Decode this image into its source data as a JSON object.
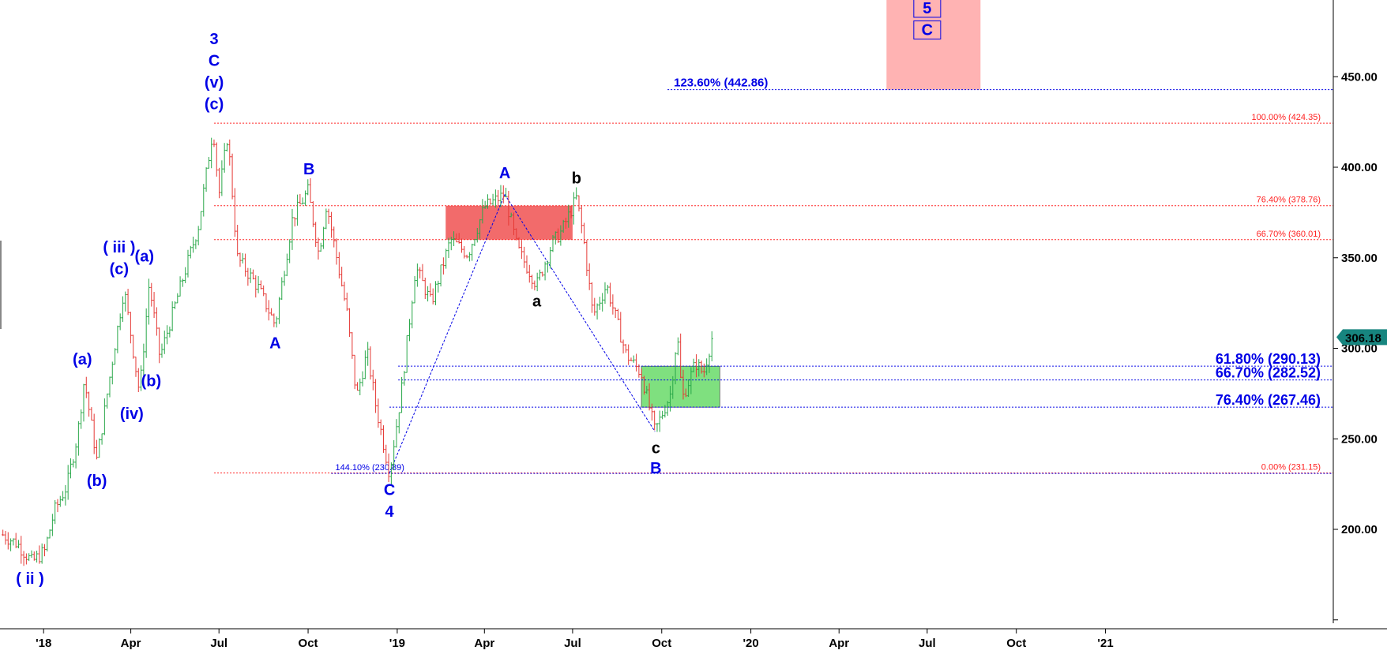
{
  "chart_data": {
    "type": "bar",
    "title": "",
    "xlabel": "",
    "ylabel": "",
    "ylim": [
      150,
      495
    ],
    "y_ticks": [
      "200.00",
      "250.00",
      "300.00",
      "350.00",
      "400.00",
      "450.00"
    ],
    "x_ticks": [
      "'18",
      "Apr",
      "Jul",
      "Oct",
      "'19",
      "Apr",
      "Jul",
      "Oct",
      "'20",
      "Apr",
      "Jul",
      "Oct",
      "'21"
    ],
    "grid": false,
    "last_price": {
      "label": "306.18",
      "value": 306.18
    },
    "price_path": [
      {
        "d": "2017-11-20",
        "v": 197
      },
      {
        "d": "2017-12-05",
        "v": 192
      },
      {
        "d": "2017-12-20",
        "v": 182
      },
      {
        "d": "2018-01-02",
        "v": 188
      },
      {
        "d": "2018-01-12",
        "v": 210
      },
      {
        "d": "2018-01-25",
        "v": 224
      },
      {
        "d": "2018-02-05",
        "v": 252
      },
      {
        "d": "2018-02-12",
        "v": 283
      },
      {
        "d": "2018-02-25",
        "v": 238
      },
      {
        "d": "2018-03-12",
        "v": 290
      },
      {
        "d": "2018-03-25",
        "v": 333
      },
      {
        "d": "2018-04-10",
        "v": 275
      },
      {
        "d": "2018-04-20",
        "v": 336
      },
      {
        "d": "2018-05-01",
        "v": 295
      },
      {
        "d": "2018-05-20",
        "v": 330
      },
      {
        "d": "2018-06-10",
        "v": 368
      },
      {
        "d": "2018-06-25",
        "v": 422
      },
      {
        "d": "2018-07-01",
        "v": 385
      },
      {
        "d": "2018-07-10",
        "v": 418
      },
      {
        "d": "2018-07-20",
        "v": 350
      },
      {
        "d": "2018-08-10",
        "v": 334
      },
      {
        "d": "2018-08-28",
        "v": 313
      },
      {
        "d": "2018-09-15",
        "v": 372
      },
      {
        "d": "2018-10-01",
        "v": 387
      },
      {
        "d": "2018-10-12",
        "v": 352
      },
      {
        "d": "2018-10-20",
        "v": 380
      },
      {
        "d": "2018-11-10",
        "v": 320
      },
      {
        "d": "2018-11-20",
        "v": 273
      },
      {
        "d": "2018-12-01",
        "v": 298
      },
      {
        "d": "2018-12-10",
        "v": 268
      },
      {
        "d": "2018-12-24",
        "v": 231
      },
      {
        "d": "2019-01-05",
        "v": 275
      },
      {
        "d": "2019-01-20",
        "v": 345
      },
      {
        "d": "2019-02-05",
        "v": 325
      },
      {
        "d": "2019-02-25",
        "v": 360
      },
      {
        "d": "2019-03-15",
        "v": 352
      },
      {
        "d": "2019-04-01",
        "v": 378
      },
      {
        "d": "2019-04-22",
        "v": 385
      },
      {
        "d": "2019-05-05",
        "v": 355
      },
      {
        "d": "2019-05-25",
        "v": 335
      },
      {
        "d": "2019-06-10",
        "v": 358
      },
      {
        "d": "2019-06-20",
        "v": 365
      },
      {
        "d": "2019-07-05",
        "v": 383
      },
      {
        "d": "2019-07-12",
        "v": 362
      },
      {
        "d": "2019-07-22",
        "v": 318
      },
      {
        "d": "2019-08-05",
        "v": 335
      },
      {
        "d": "2019-08-25",
        "v": 297
      },
      {
        "d": "2019-09-10",
        "v": 286
      },
      {
        "d": "2019-09-24",
        "v": 254
      },
      {
        "d": "2019-10-10",
        "v": 275
      },
      {
        "d": "2019-10-17",
        "v": 308
      },
      {
        "d": "2019-10-22",
        "v": 272
      },
      {
        "d": "2019-11-05",
        "v": 292
      },
      {
        "d": "2019-11-13",
        "v": 286
      },
      {
        "d": "2019-11-22",
        "v": 306
      }
    ],
    "fib_levels": [
      {
        "label": "100.00% (424.35)",
        "value": 424.35,
        "color": "#ff2222",
        "style": "small",
        "from": "2018-06-26"
      },
      {
        "label": "76.40% (378.76)",
        "value": 378.76,
        "color": "#ff2222",
        "style": "small",
        "from": "2018-06-26"
      },
      {
        "label": "66.70% (360.01)",
        "value": 360.01,
        "color": "#ff2222",
        "style": "small",
        "from": "2018-06-26"
      },
      {
        "label": "0.00% (231.15)",
        "value": 231.15,
        "color": "#ff2222",
        "style": "small",
        "from": "2018-06-26"
      },
      {
        "label": "123.60% (442.86)",
        "value": 442.86,
        "color": "#0000e6",
        "style": "mid",
        "from": "2019-10-07"
      },
      {
        "label": "61.80% (290.13)",
        "value": 290.13,
        "color": "#0000e6",
        "style": "big",
        "from": "2019-01-02"
      },
      {
        "label": "66.70% (282.52)",
        "value": 282.52,
        "color": "#0000e6",
        "style": "big",
        "from": "2019-01-02"
      },
      {
        "label": "76.40% (267.46)",
        "value": 267.46,
        "color": "#0000e6",
        "style": "big",
        "from": "2018-12-24"
      },
      {
        "label": "144.10% (230.89)",
        "value": 230.89,
        "color": "#0000e6",
        "style": "left",
        "from": "2018-10-25"
      }
    ],
    "zones": [
      {
        "x0": "2019-02-20",
        "x1": "2019-07-01",
        "y0": 360.01,
        "y1": 378.76,
        "color": "#f26b6b"
      },
      {
        "x0": "2019-09-10",
        "x1": "2019-11-30",
        "y0": 267.46,
        "y1": 290.13,
        "color": "#7fe07f"
      },
      {
        "x0": "2020-05-20",
        "x1": "2020-08-25",
        "y0": 442.86,
        "y1": 495,
        "color": "#ffb3b3"
      }
    ],
    "trendlines": [
      {
        "d0": "2018-12-24",
        "v0": 231,
        "d1": "2019-04-22",
        "v1": 385
      },
      {
        "d0": "2019-04-22",
        "v0": 385,
        "d1": "2019-09-24",
        "v1": 254
      }
    ],
    "wave_labels": [
      {
        "text": "3",
        "d": "2018-06-26",
        "v": 468,
        "color": "#0000e6"
      },
      {
        "text": "C",
        "d": "2018-06-26",
        "v": 456,
        "color": "#0000e6"
      },
      {
        "text": "(v)",
        "d": "2018-06-26",
        "v": 444,
        "color": "#0000e6"
      },
      {
        "text": "(c)",
        "d": "2018-06-26",
        "v": 432,
        "color": "#0000e6"
      },
      {
        "text": "( iii )",
        "d": "2018-03-20",
        "v": 353,
        "color": "#0000e6"
      },
      {
        "text": "(c)",
        "d": "2018-03-20",
        "v": 341,
        "color": "#0000e6"
      },
      {
        "text": "(a)",
        "d": "2018-04-15",
        "v": 348,
        "color": "#0000e6"
      },
      {
        "text": "(a)",
        "d": "2018-02-10",
        "v": 291,
        "color": "#0000e6"
      },
      {
        "text": "(b)",
        "d": "2018-04-22",
        "v": 279,
        "color": "#0000e6"
      },
      {
        "text": "(iv)",
        "d": "2018-04-02",
        "v": 261,
        "color": "#0000e6"
      },
      {
        "text": "(b)",
        "d": "2018-02-25",
        "v": 224,
        "color": "#0000e6"
      },
      {
        "text": "( ii )",
        "d": "2017-12-18",
        "v": 170,
        "color": "#0000e6"
      },
      {
        "text": "A",
        "d": "2018-08-28",
        "v": 300,
        "color": "#0000e6"
      },
      {
        "text": "B",
        "d": "2018-10-02",
        "v": 396,
        "color": "#0000e6"
      },
      {
        "text": "C",
        "d": "2018-12-24",
        "v": 219,
        "color": "#0000e6"
      },
      {
        "text": "4",
        "d": "2018-12-24",
        "v": 207,
        "color": "#0000e6"
      },
      {
        "text": "A",
        "d": "2019-04-22",
        "v": 394,
        "color": "#0000e6"
      },
      {
        "text": "b",
        "d": "2019-07-05",
        "v": 391,
        "color": "#000000"
      },
      {
        "text": "a",
        "d": "2019-05-25",
        "v": 323,
        "color": "#000000"
      },
      {
        "text": "c",
        "d": "2019-09-25",
        "v": 242,
        "color": "#000000"
      },
      {
        "text": "B",
        "d": "2019-09-25",
        "v": 231,
        "color": "#0000e6"
      },
      {
        "text": "5",
        "d": "2020-07-01",
        "v": 485,
        "color": "#0000e6",
        "boxed": true
      },
      {
        "text": "C",
        "d": "2020-07-01",
        "v": 473,
        "color": "#0000e6",
        "boxed": true
      }
    ],
    "colors": {
      "up": "#2aa84a",
      "down": "#e53935",
      "price_tag": "#17857f",
      "blue": "#0000e6",
      "red": "#ff2222"
    }
  }
}
